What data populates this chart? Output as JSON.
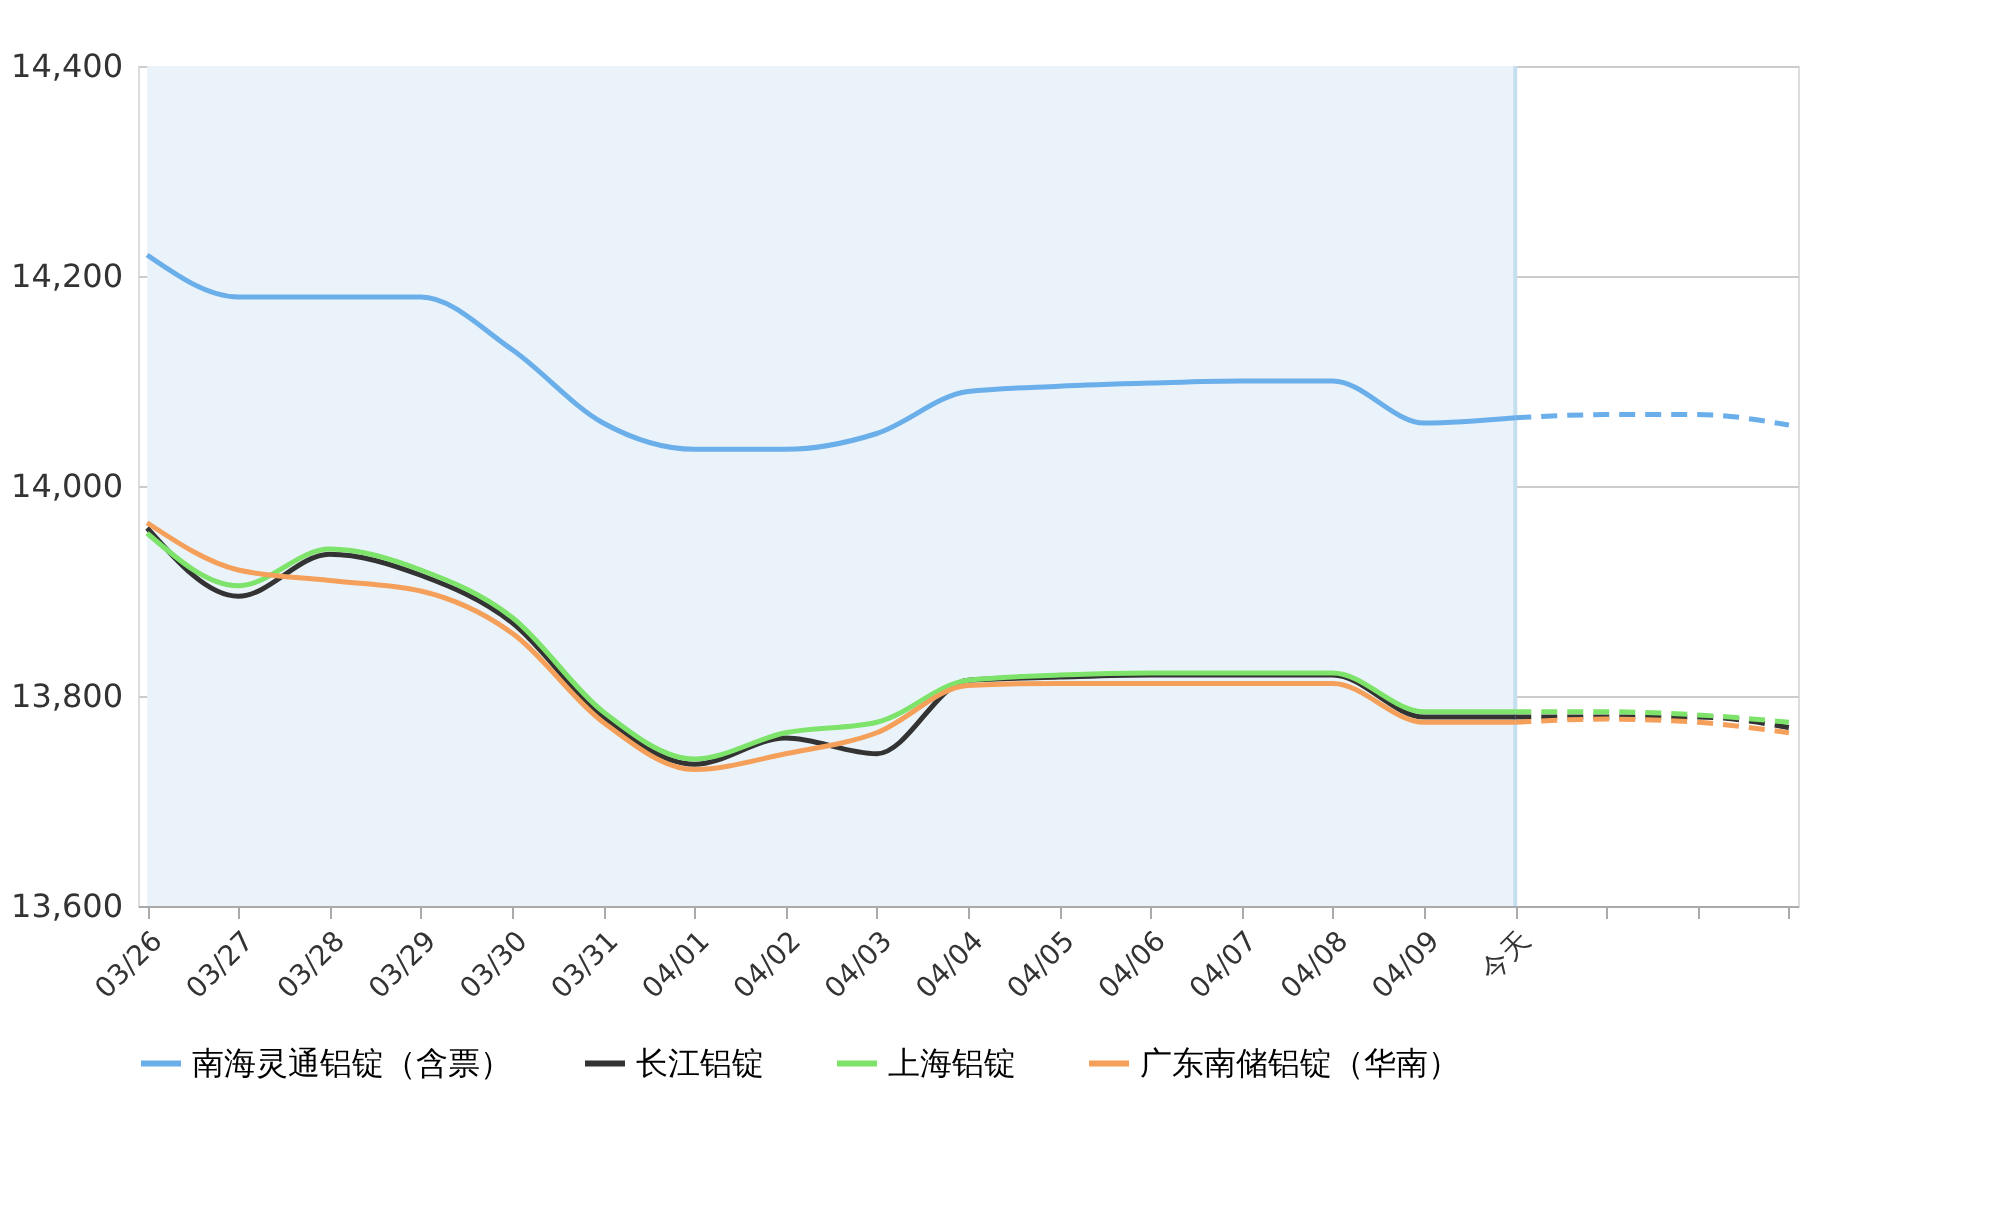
{
  "chart_data": {
    "type": "line",
    "categories": [
      "03/26",
      "03/27",
      "03/28",
      "03/29",
      "03/30",
      "03/31",
      "04/01",
      "04/02",
      "04/03",
      "04/04",
      "04/05",
      "04/06",
      "04/07",
      "04/08",
      "04/09",
      "今天",
      null,
      null,
      null
    ],
    "series": [
      {
        "name": "南海灵通铝锭（含票）",
        "color": "#6aaeea",
        "values": [
          14220,
          14180,
          14180,
          14180,
          14130,
          14060,
          14035,
          14035,
          14050,
          14090,
          14095,
          14098,
          14100,
          14100,
          14060,
          14065,
          null,
          null,
          null
        ]
      },
      {
        "name": "长江铝锭",
        "color": "#333333",
        "values": [
          13960,
          13895,
          13935,
          13915,
          13870,
          13780,
          13735,
          13760,
          13745,
          13815,
          13818,
          13820,
          13820,
          13820,
          13780,
          13780,
          null,
          null,
          null
        ]
      },
      {
        "name": "上海铝锭",
        "color": "#7de36a",
        "values": [
          13955,
          13905,
          13940,
          13920,
          13875,
          13785,
          13740,
          13765,
          13775,
          13815,
          13820,
          13822,
          13822,
          13822,
          13785,
          13785,
          null,
          null,
          null
        ]
      },
      {
        "name": "广东南储铝锭（华南）",
        "color": "#f5a05a",
        "values": [
          13965,
          13920,
          13910,
          13900,
          13860,
          13775,
          13730,
          13745,
          13765,
          13810,
          13812,
          13812,
          13812,
          13812,
          13775,
          13775,
          null,
          null,
          null
        ]
      },
      {
        "color": "#6aaeea",
        "line_style": "dashed",
        "values": [
          null,
          null,
          null,
          null,
          null,
          null,
          null,
          null,
          null,
          null,
          null,
          null,
          null,
          null,
          null,
          14065,
          14068,
          14068,
          14058
        ]
      },
      {
        "color": "#333333",
        "line_style": "dashed",
        "values": [
          null,
          null,
          null,
          null,
          null,
          null,
          null,
          null,
          null,
          null,
          null,
          null,
          null,
          null,
          null,
          13780,
          13780,
          13780,
          13770
        ]
      },
      {
        "color": "#7de36a",
        "line_style": "dashed",
        "values": [
          null,
          null,
          null,
          null,
          null,
          null,
          null,
          null,
          null,
          null,
          null,
          null,
          null,
          null,
          null,
          13785,
          13785,
          13782,
          13775
        ]
      },
      {
        "color": "#f5a05a",
        "line_style": "dashed",
        "values": [
          null,
          null,
          null,
          null,
          null,
          null,
          null,
          null,
          null,
          null,
          null,
          null,
          null,
          null,
          null,
          13775,
          13778,
          13775,
          13765
        ]
      }
    ],
    "ylim": [
      13600,
      14400
    ],
    "yticks": [
      {
        "value": 13600,
        "label": "13,600"
      },
      {
        "value": 13800,
        "label": "13,800"
      },
      {
        "value": 14000,
        "label": "14,000"
      },
      {
        "value": 14200,
        "label": "14,200"
      },
      {
        "value": 14400,
        "label": "14,400"
      }
    ],
    "grid": "y",
    "legend": "bottom",
    "marker": "none",
    "line_style": "solid",
    "bands": [
      {
        "axis": "x",
        "from": "03/26",
        "to": "今天",
        "color": "#eaf3fa"
      }
    ],
    "ref_lines": [
      {
        "axis": "x",
        "value": "今天",
        "color": "#c5dff0"
      }
    ]
  }
}
